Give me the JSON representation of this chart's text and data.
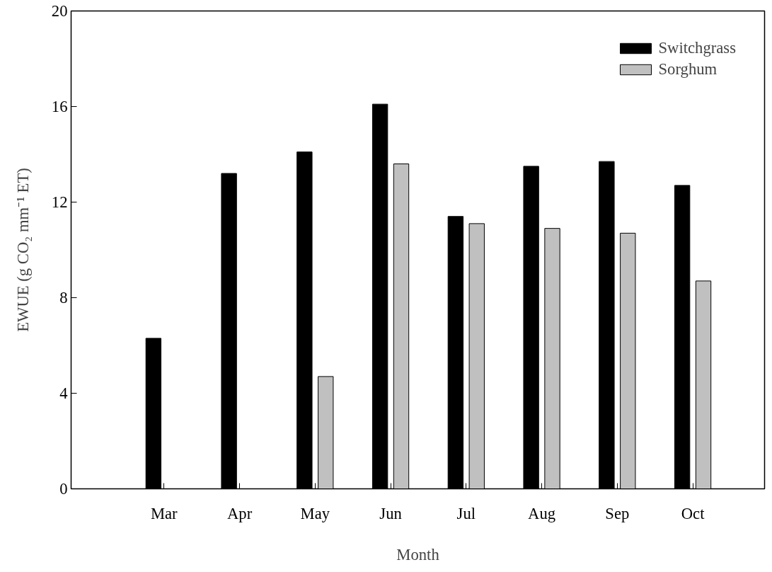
{
  "chart_data": {
    "type": "bar",
    "xlabel": "Month",
    "ylabel": "EWUE (g CO₂ mm⁻¹ ET)",
    "categories": [
      "Mar",
      "Apr",
      "May",
      "Jun",
      "Jul",
      "Aug",
      "Sep",
      "Oct"
    ],
    "series": [
      {
        "name": "Switchgrass",
        "color": "#000000",
        "values": [
          6.3,
          13.2,
          14.1,
          16.1,
          11.4,
          13.5,
          13.7,
          12.7
        ]
      },
      {
        "name": "Sorghum",
        "color": "#c0c0c0",
        "values": [
          null,
          null,
          4.7,
          13.6,
          11.1,
          10.9,
          10.7,
          8.7
        ]
      }
    ],
    "ylim": [
      0,
      20
    ],
    "yticks": [
      0,
      4,
      8,
      12,
      16,
      20
    ],
    "grid": false,
    "legend": "top right"
  }
}
